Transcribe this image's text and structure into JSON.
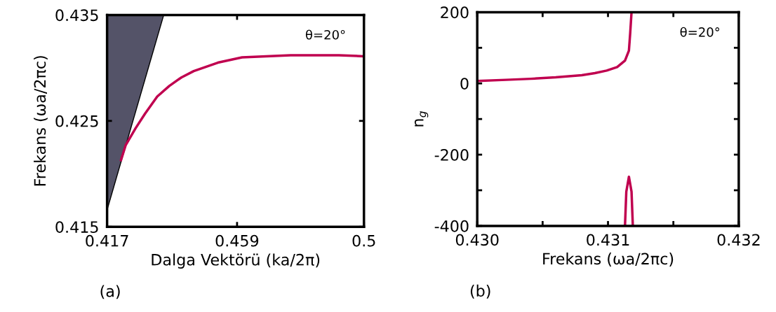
{
  "chart_data": [
    {
      "type": "line",
      "xlabel": "Dalga Vektörü (ka/2π)",
      "ylabel": "Frekans (ωa/2πc)",
      "xlim": [
        0.417,
        0.5
      ],
      "ylim": [
        0.415,
        0.435
      ],
      "xticks": [
        0.417,
        0.459,
        0.5
      ],
      "yticks": [
        0.415,
        0.425,
        0.435
      ],
      "grid": false,
      "annotations": [
        "θ=20°",
        "(a)"
      ],
      "series": [
        {
          "type": "area",
          "color": "#545368",
          "x": [
            0.417,
            0.4353
          ],
          "values": [
            0.4166,
            0.435
          ]
        },
        {
          "color": "#c0004f",
          "x": [
            0.4215,
            0.423,
            0.4262,
            0.4293,
            0.4332,
            0.4371,
            0.441,
            0.445,
            0.4528,
            0.4606,
            0.4684,
            0.4763,
            0.4841,
            0.4919,
            0.5
          ],
          "values": [
            0.4213,
            0.4227,
            0.4243,
            0.4257,
            0.4273,
            0.4283,
            0.4291,
            0.4297,
            0.4305,
            0.431,
            0.4311,
            0.4312,
            0.4312,
            0.4312,
            0.4311
          ]
        }
      ]
    },
    {
      "type": "line",
      "xlabel": "Frekans (ωa/2πc)",
      "ylabel": "n$_{g}$",
      "xlim": [
        0.43,
        0.432
      ],
      "ylim": [
        -400,
        200
      ],
      "xticks": [
        {
          "value": 0.43,
          "label": "0.430"
        },
        {
          "value": 0.4305,
          "label": null
        },
        {
          "value": 0.431,
          "label": "0.431"
        },
        {
          "value": 0.4315,
          "label": null
        },
        {
          "value": 0.432,
          "label": "0.432"
        }
      ],
      "yticks": [
        -400,
        {
          "value": -300,
          "label": null
        },
        -200,
        {
          "value": -100,
          "label": null
        },
        0,
        {
          "value": 100,
          "label": null
        },
        200
      ],
      "grid": false,
      "annotations": [
        "θ=20°",
        "(b)"
      ],
      "series": [
        {
          "color": "#c0004f",
          "x": [
            0.43,
            0.43022,
            0.43041,
            0.4306,
            0.4308,
            0.4309,
            0.43099,
            0.43107,
            0.43113,
            0.43116,
            0.43117,
            0.43118
          ],
          "values": [
            7,
            10,
            13,
            17,
            23,
            29,
            36,
            46,
            64,
            92,
            142,
            200
          ]
        },
        {
          "color": "#c0004f",
          "x": [
            0.43113,
            0.43114,
            0.43116,
            0.43118,
            0.43119
          ],
          "values": [
            -400,
            -304,
            -262,
            -304,
            -400
          ]
        }
      ]
    }
  ]
}
